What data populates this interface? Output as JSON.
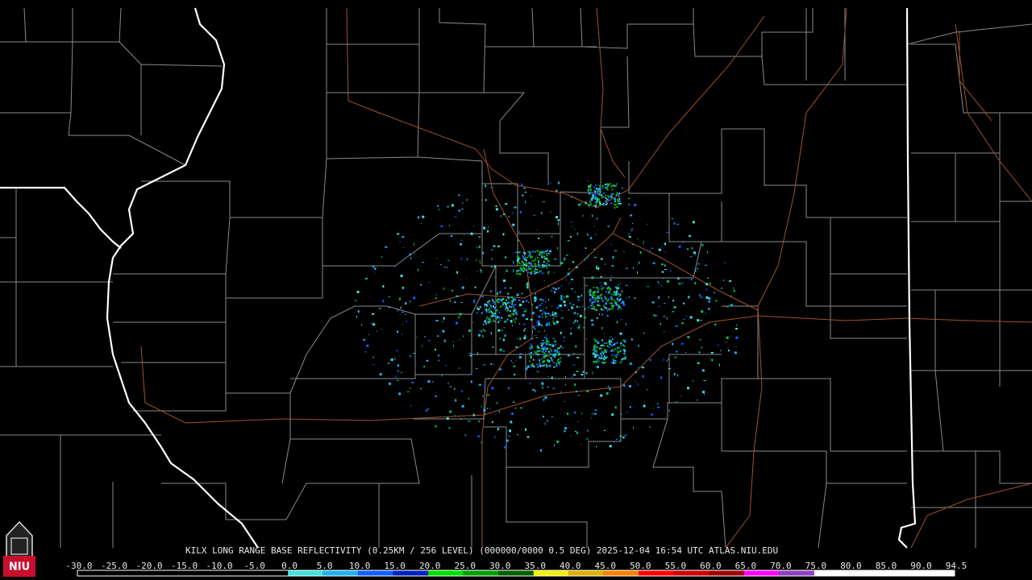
{
  "caption": "KILX LONG RANGE BASE REFLECTIVITY (0.25KM / 256 LEVEL) (000000/0000 0.5 DEG) 2025-12-04 16:54 UTC  ATLAS.NIU.EDU",
  "logo": "NIU",
  "scale": {
    "labels": [
      "-30.0",
      "-25.0",
      "-20.0",
      "-15.0",
      "-10.0",
      "-5.0",
      "0.0",
      "5.0",
      "10.0",
      "15.0",
      "20.0",
      "25.0",
      "30.0",
      "35.0",
      "40.0",
      "45.0",
      "50.0",
      "55.0",
      "60.0",
      "65.0",
      "70.0",
      "75.0",
      "80.0",
      "85.0",
      "90.0",
      "94.5"
    ],
    "colors": [
      "#000000",
      "#000000",
      "#000000",
      "#000000",
      "#000000",
      "#000000",
      "#40e0e0",
      "#20b0f0",
      "#1060ff",
      "#0020c0",
      "#00e000",
      "#00a000",
      "#006000",
      "#f0f000",
      "#e0b000",
      "#ff8000",
      "#ff0000",
      "#d00000",
      "#a00000",
      "#ff00ff",
      "#9040c0",
      "#ffffff",
      "#ffffff",
      "#ffffff",
      "#ffffff"
    ]
  }
}
